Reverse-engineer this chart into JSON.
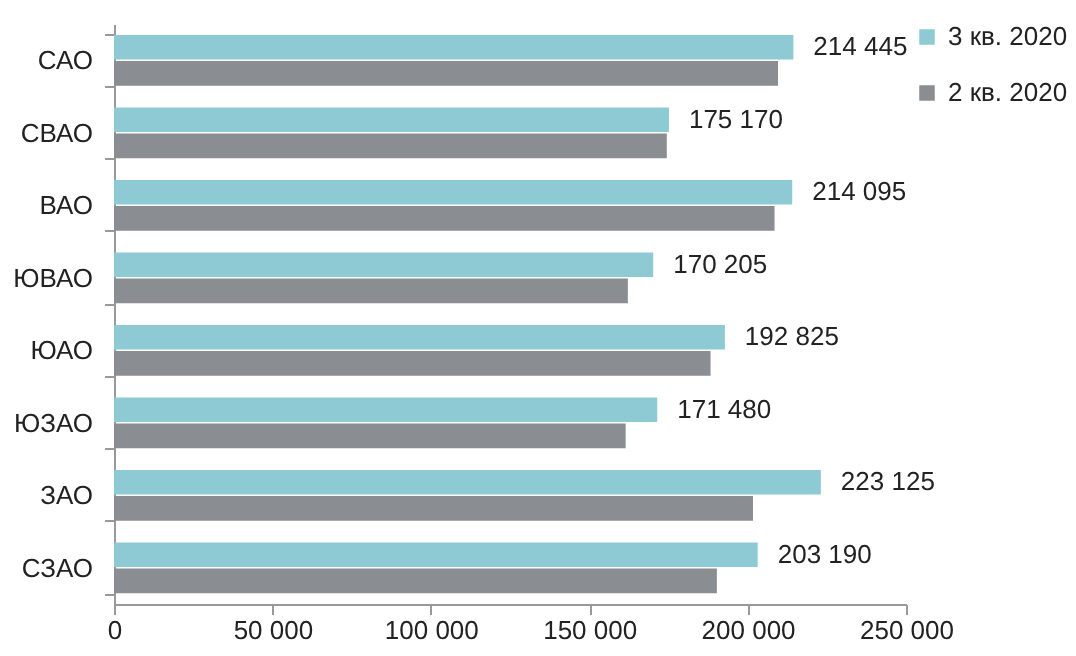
{
  "chart_data": {
    "type": "bar",
    "orientation": "horizontal",
    "categories": [
      "САО",
      "СВАО",
      "ВАО",
      "ЮВАО",
      "ЮАО",
      "ЮЗАО",
      "ЗАО",
      "СЗАО"
    ],
    "series": [
      {
        "name": "3 кв. 2020",
        "color": "#8ecad3",
        "values": [
          214445,
          175170,
          214095,
          170205,
          192825,
          171480,
          223125,
          203190
        ],
        "value_labels": [
          "214 445",
          "175 170",
          "214 095",
          "170 205",
          "192 825",
          "171 480",
          "223 125",
          "203 190"
        ]
      },
      {
        "name": "2 кв. 2020",
        "color": "#8a8d91",
        "values": [
          209600,
          174500,
          208500,
          162200,
          188300,
          161500,
          201700,
          190300
        ]
      }
    ],
    "xlim": [
      0,
      250000
    ],
    "xticks": [
      {
        "value": 0,
        "label": "0"
      },
      {
        "value": 50000,
        "label": "50 000"
      },
      {
        "value": 100000,
        "label": "100 000"
      },
      {
        "value": 150000,
        "label": "150 000"
      },
      {
        "value": 200000,
        "label": "200 000"
      },
      {
        "value": 250000,
        "label": "250 000"
      }
    ],
    "grid": false,
    "legend": "right"
  }
}
